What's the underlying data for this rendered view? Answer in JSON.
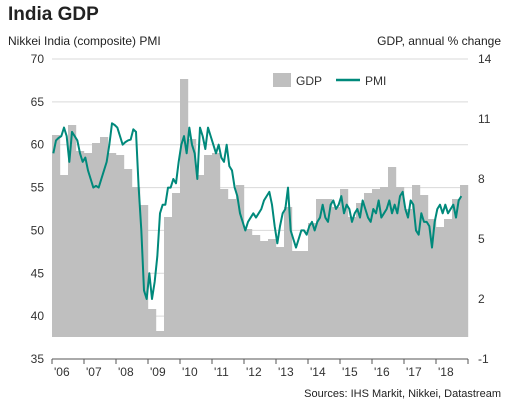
{
  "chart_data": {
    "type": "bar+line",
    "title": "India GDP",
    "left_axis_label": "Nikkei India (composite) PMI",
    "right_axis_label": "GDP, annual  % change",
    "source": "Sources: IHS Markit, Nikkei, Datastream",
    "x_tick_labels": [
      "'06",
      "'07",
      "'08",
      "'09",
      "'10",
      "'11",
      "'12",
      "'13",
      "'14",
      "'15",
      "'16",
      "'17",
      "'18"
    ],
    "left_axis": {
      "min": 35,
      "max": 70,
      "ticks": [
        35,
        40,
        45,
        50,
        55,
        60,
        65,
        70
      ]
    },
    "right_axis": {
      "min": -1,
      "max": 14,
      "ticks": [
        -1,
        2,
        5,
        8,
        11,
        14
      ]
    },
    "grid": "horizontal",
    "legend": {
      "position": "top-right",
      "entries": [
        "GDP",
        "PMI"
      ]
    },
    "colors": {
      "gdp": "#bfbfbf",
      "pmi": "#00897b"
    },
    "series": [
      {
        "name": "GDP",
        "axis": "right",
        "kind": "bar",
        "frequency": "quarterly",
        "start": "2006 Q1",
        "values": [
          10.2,
          8.2,
          10.7,
          9.4,
          9.3,
          9.8,
          10.1,
          9.3,
          9.2,
          8.5,
          7.6,
          6.7,
          1.5,
          0.4,
          6.1,
          7.3,
          13.0,
          10.0,
          8.2,
          9.2,
          9.3,
          7.5,
          7.0,
          7.7,
          5.5,
          5.2,
          4.9,
          5.0,
          4.6,
          6.6,
          4.4,
          4.4,
          5.8,
          7.0,
          7.0,
          6.6,
          7.5,
          6.1,
          6.8,
          7.3,
          7.5,
          7.6,
          8.6,
          7.6,
          6.5,
          7.7,
          7.2,
          6.0,
          5.6,
          6.0,
          7.0,
          7.7
        ]
      },
      {
        "name": "PMI",
        "axis": "left",
        "kind": "line",
        "frequency": "monthly",
        "start": "2006-01",
        "values": [
          59,
          60.5,
          60.8,
          61,
          62,
          61,
          58,
          61.5,
          61,
          60.5,
          59,
          58,
          58.5,
          57,
          56,
          55,
          55.2,
          55,
          56,
          57,
          58,
          60,
          62.5,
          62.3,
          62,
          61,
          60,
          60.3,
          60.5,
          60.6,
          61.8,
          61.5,
          55,
          50,
          43,
          42,
          45,
          42,
          44,
          47,
          52,
          53,
          53,
          55,
          55,
          56,
          55.5,
          58,
          60,
          61,
          59,
          62,
          60,
          59,
          56,
          62,
          61,
          59.5,
          62,
          61,
          60,
          59,
          60,
          58.5,
          58,
          60,
          57.5,
          57,
          55,
          54,
          52,
          51,
          50,
          51,
          51.5,
          52,
          51.5,
          52,
          52.5,
          53.5,
          54,
          54.5,
          53,
          50.5,
          48.5,
          50.5,
          52,
          52.5,
          55,
          50,
          49,
          48,
          49,
          50,
          50,
          49.5,
          50.5,
          51,
          50,
          51,
          51.5,
          53,
          51.5,
          51,
          53,
          53.5,
          52.5,
          53,
          54,
          52,
          53,
          52.5,
          51,
          52,
          52.5,
          51.5,
          53.5,
          52.5,
          51.5,
          51,
          52.5,
          52,
          53.5,
          51.5,
          52,
          52.5,
          53.5,
          52,
          53,
          52,
          54,
          54.5,
          52.5,
          51.5,
          53.5,
          53,
          50,
          49.5,
          52,
          51,
          51,
          50.5,
          48,
          51,
          52.5,
          53,
          52,
          53,
          52,
          52.5,
          53,
          51.5,
          53.5,
          54
        ]
      }
    ]
  }
}
